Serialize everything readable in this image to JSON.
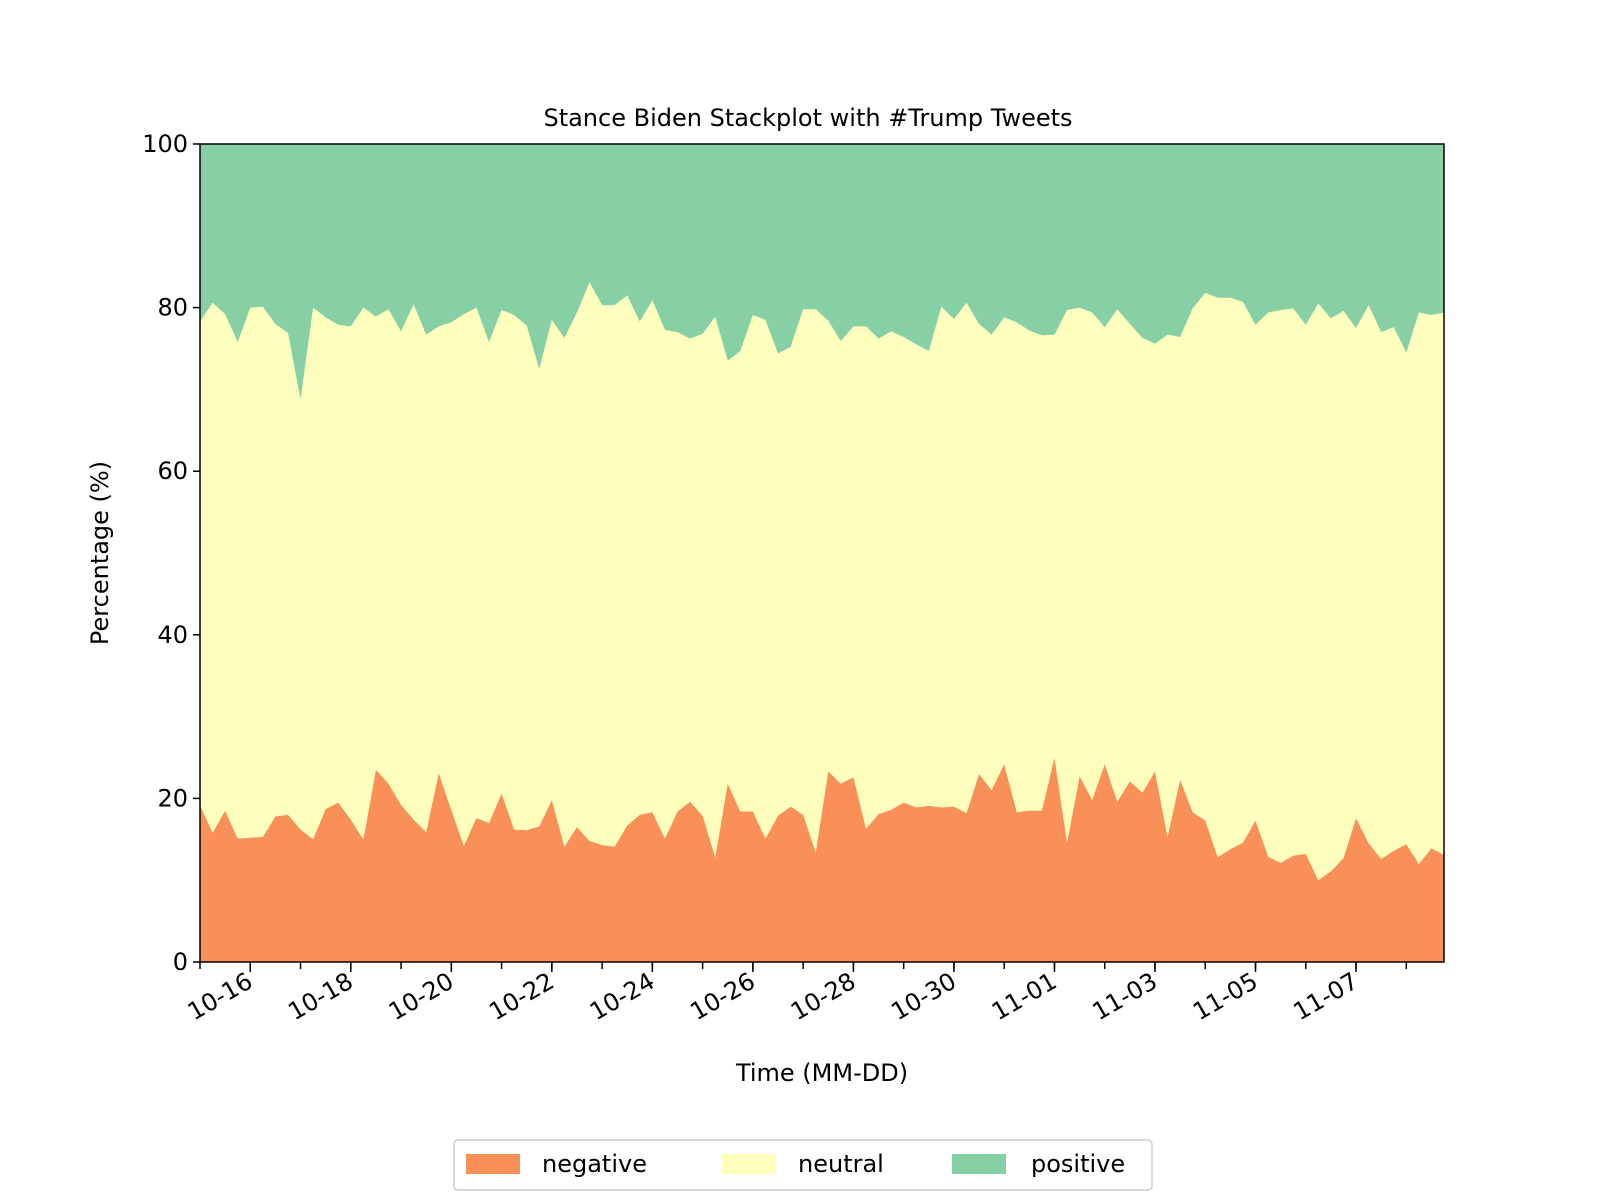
{
  "chart_data": {
    "type": "area",
    "stacked": true,
    "title": "Stance Biden Stackplot with #Trump Tweets",
    "xlabel": "Time (MM-DD)",
    "ylabel": "Percentage (%)",
    "ylim": [
      0,
      100
    ],
    "yticks": [
      0,
      20,
      40,
      60,
      80,
      100
    ],
    "xlim": [
      "10-15",
      "11-09"
    ],
    "xticks": [
      "10-16",
      "10-18",
      "10-20",
      "10-22",
      "10-24",
      "10-26",
      "10-28",
      "10-30",
      "11-01",
      "11-03",
      "11-05",
      "11-07"
    ],
    "x_step_hours": 6,
    "grid": false,
    "legend_position": "bottom-center",
    "series": [
      {
        "name": "negative",
        "color": "#f89057",
        "values": [
          19.2,
          15.8,
          18.5,
          15.1,
          15.2,
          15.3,
          17.8,
          18.0,
          16.2,
          15.0,
          18.7,
          19.5,
          17.4,
          15.0,
          23.5,
          21.8,
          19.2,
          17.4,
          15.9,
          23.1,
          18.6,
          14.2,
          17.6,
          17.0,
          20.6,
          16.2,
          16.1,
          16.6,
          19.8,
          14.1,
          16.5,
          14.8,
          14.3,
          14.1,
          16.7,
          18.0,
          18.3,
          15.1,
          18.4,
          19.6,
          17.9,
          12.8,
          21.8,
          18.4,
          18.4,
          15.1,
          17.9,
          19.0,
          18.0,
          13.4,
          23.3,
          21.8,
          22.6,
          16.3,
          18.1,
          18.6,
          19.5,
          18.9,
          19.1,
          18.9,
          19.0,
          18.2,
          23.0,
          21.0,
          24.2,
          18.3,
          18.5,
          18.5,
          25.0,
          14.6,
          22.7,
          19.8,
          24.2,
          19.6,
          22.1,
          20.7,
          23.3,
          15.3,
          22.3,
          18.3,
          17.3,
          12.8,
          13.8,
          14.6,
          17.3,
          12.9,
          12.1,
          13.0,
          13.2,
          10.0,
          11.1,
          12.7,
          17.6,
          14.5,
          12.6,
          13.6,
          14.4,
          12.0,
          13.9,
          13.1
        ]
      },
      {
        "name": "neutral",
        "color": "#fefebd",
        "values": [
          59.1,
          64.8,
          60.7,
          60.7,
          64.8,
          64.8,
          60.2,
          58.9,
          52.6,
          65.0,
          60.1,
          58.4,
          60.3,
          65.0,
          55.4,
          58.0,
          57.9,
          63.0,
          60.8,
          54.6,
          59.6,
          65.0,
          62.4,
          58.8,
          59.1,
          62.9,
          61.7,
          55.9,
          58.7,
          62.2,
          62.9,
          68.3,
          66.0,
          66.2,
          64.8,
          60.3,
          62.6,
          62.2,
          58.6,
          56.6,
          58.9,
          66.1,
          51.7,
          56.3,
          60.7,
          63.4,
          56.5,
          56.2,
          61.8,
          66.4,
          55.1,
          54.1,
          55.1,
          61.4,
          58.1,
          58.5,
          56.9,
          56.6,
          55.6,
          61.2,
          59.6,
          62.4,
          55.0,
          55.7,
          54.6,
          59.9,
          58.7,
          58.1,
          51.7,
          65.1,
          57.3,
          59.6,
          53.4,
          60.2,
          55.9,
          55.6,
          52.3,
          61.4,
          54.1,
          61.6,
          64.5,
          68.4,
          67.4,
          66.1,
          60.6,
          66.5,
          67.6,
          66.9,
          64.7,
          70.5,
          67.6,
          66.9,
          59.9,
          65.8,
          64.4,
          64.0,
          60.1,
          67.4,
          65.2,
          66.3
        ]
      },
      {
        "name": "positive",
        "color": "#87cfa4",
        "values": [
          21.7,
          19.4,
          20.8,
          24.2,
          20.0,
          19.9,
          22.0,
          23.1,
          31.2,
          20.0,
          21.2,
          22.1,
          22.3,
          20.0,
          21.1,
          20.2,
          22.9,
          19.6,
          23.3,
          22.3,
          21.8,
          20.8,
          20.0,
          24.2,
          20.3,
          20.9,
          22.2,
          27.5,
          21.5,
          23.7,
          20.6,
          16.9,
          19.7,
          19.7,
          18.5,
          21.7,
          19.1,
          22.7,
          23.0,
          23.8,
          23.2,
          21.1,
          26.5,
          25.3,
          20.9,
          21.5,
          25.6,
          24.8,
          20.2,
          20.2,
          21.6,
          24.1,
          22.3,
          22.3,
          23.8,
          22.9,
          23.6,
          24.5,
          25.3,
          19.9,
          21.4,
          19.4,
          22.0,
          23.3,
          21.2,
          21.8,
          22.8,
          23.4,
          23.3,
          20.3,
          20.0,
          20.6,
          22.4,
          20.2,
          22.0,
          23.7,
          24.4,
          23.3,
          23.6,
          20.1,
          18.2,
          18.8,
          18.8,
          19.3,
          22.1,
          20.6,
          20.3,
          20.1,
          22.1,
          19.5,
          21.3,
          20.4,
          22.5,
          19.7,
          23.0,
          22.4,
          25.5,
          20.6,
          20.9,
          20.6
        ]
      }
    ]
  }
}
